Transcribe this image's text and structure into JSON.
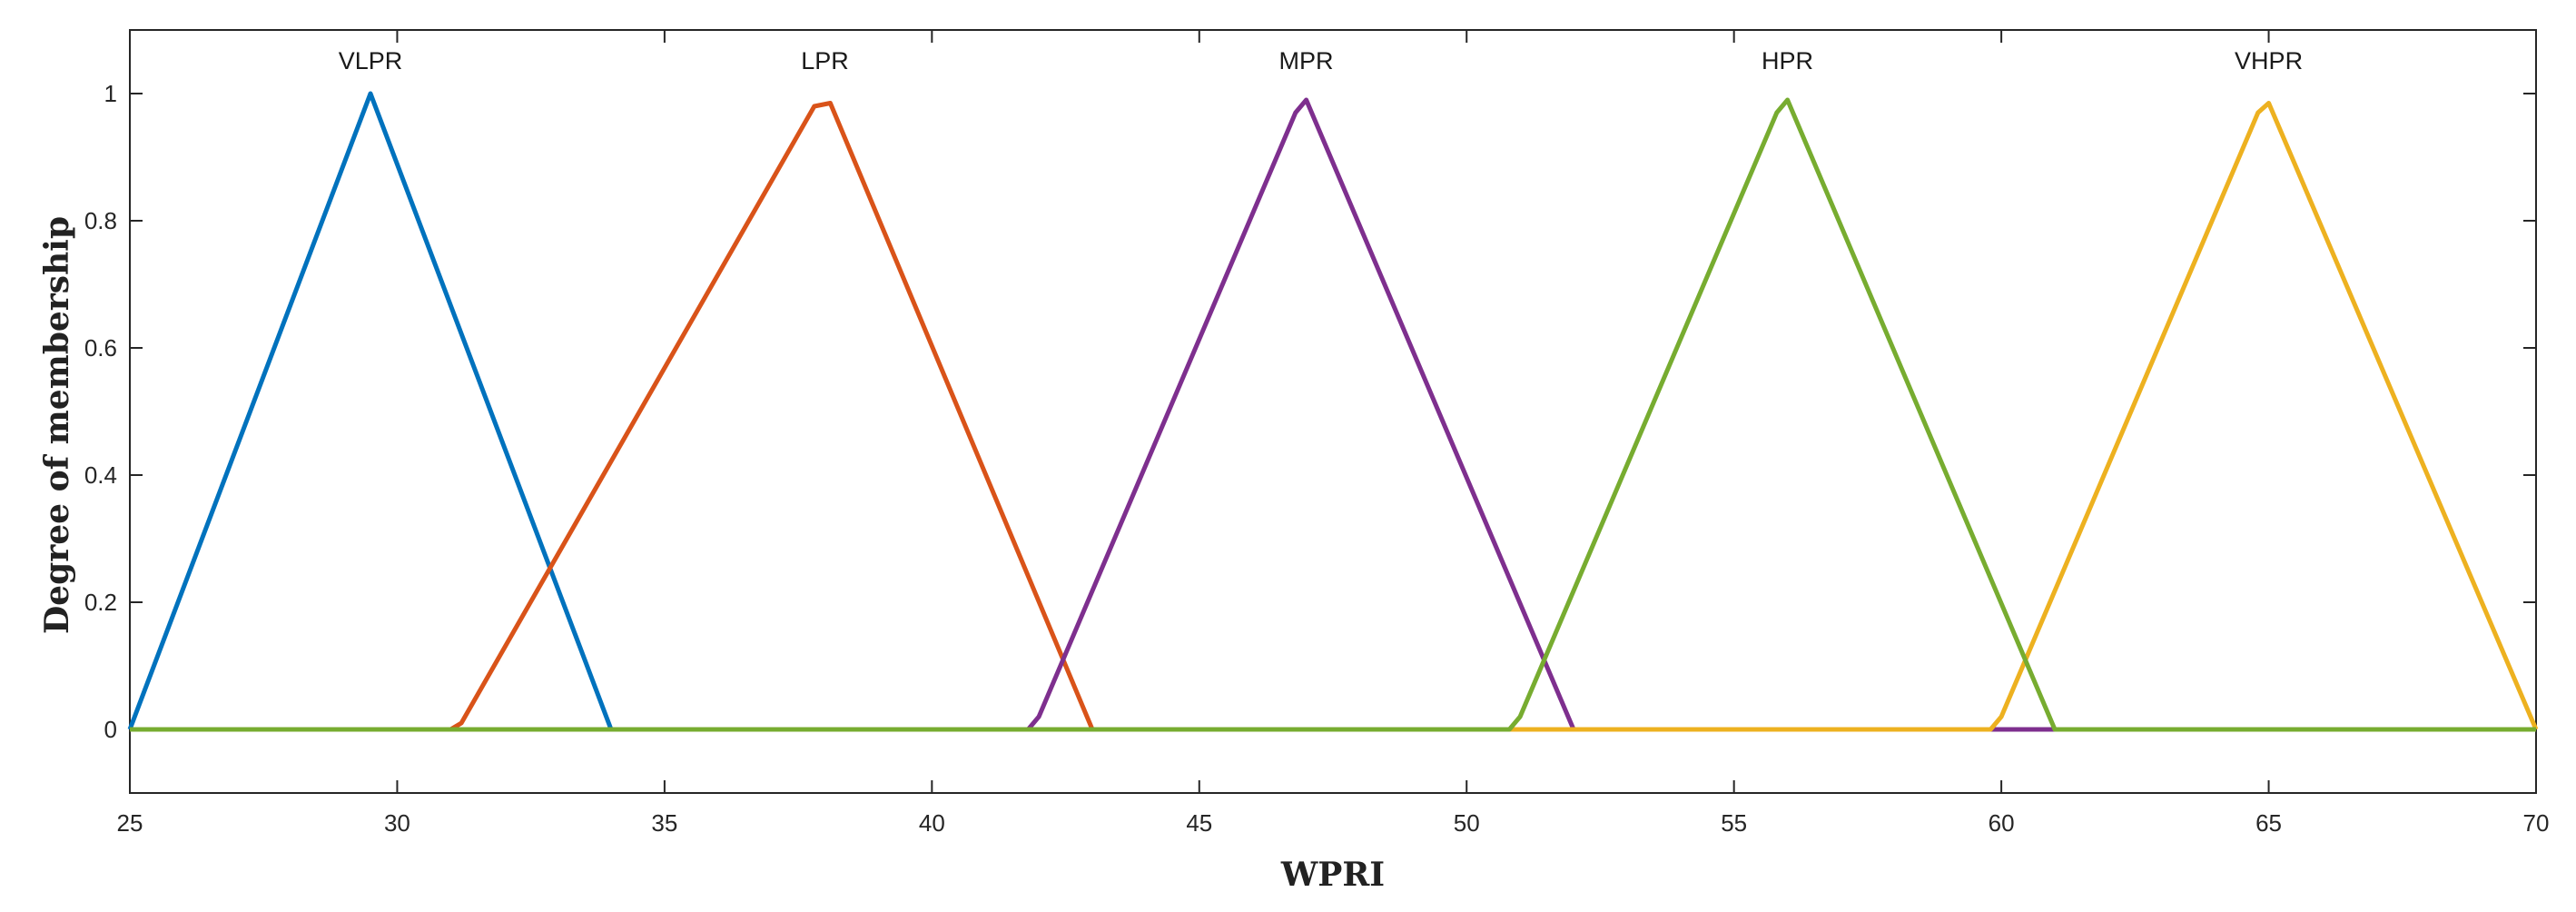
{
  "chart_data": {
    "type": "line",
    "title": "",
    "xlabel": "WPRI",
    "ylabel": "Degree of membership",
    "xlim": [
      25,
      70
    ],
    "ylim": [
      -0.1,
      1.1
    ],
    "xticks": [
      25,
      30,
      35,
      40,
      45,
      50,
      55,
      60,
      65,
      70
    ],
    "xtick_labels": [
      "25",
      "30",
      "35",
      "40",
      "45",
      "50",
      "55",
      "60",
      "65",
      "70"
    ],
    "yticks": [
      0,
      0.2,
      0.4,
      0.6,
      0.8,
      1
    ],
    "ytick_labels": [
      "0",
      "0.2",
      "0.4",
      "0.6",
      "0.8",
      "1"
    ],
    "grid": false,
    "series": [
      {
        "name": "VLPR",
        "color": "#0072BD",
        "label_x": 29.5,
        "label_y": 1.05,
        "points": [
          [
            25,
            0
          ],
          [
            29.5,
            1
          ],
          [
            34,
            0
          ],
          [
            70,
            0
          ]
        ]
      },
      {
        "name": "LPR",
        "color": "#D95319",
        "label_x": 38,
        "label_y": 1.05,
        "points": [
          [
            25,
            0
          ],
          [
            31,
            0
          ],
          [
            31.2,
            0.01
          ],
          [
            37.8,
            0.98
          ],
          [
            38.1,
            0.985
          ],
          [
            43,
            0
          ],
          [
            70,
            0
          ]
        ]
      },
      {
        "name": "MPR",
        "color": "#7E2F8E",
        "label_x": 47,
        "label_y": 1.05,
        "points": [
          [
            25,
            0
          ],
          [
            41.8,
            0
          ],
          [
            42.0,
            0.02
          ],
          [
            46.8,
            0.97
          ],
          [
            47.0,
            0.99
          ],
          [
            52,
            0
          ],
          [
            70,
            0
          ]
        ]
      },
      {
        "name": "VHPR",
        "color": "#EDB120",
        "label_x": 65,
        "label_y": 1.05,
        "points": [
          [
            25,
            0
          ],
          [
            59.8,
            0
          ],
          [
            60.0,
            0.02
          ],
          [
            64.8,
            0.97
          ],
          [
            65.0,
            0.985
          ],
          [
            70,
            0
          ]
        ]
      },
      {
        "name": "HPR",
        "color": "#77AC30",
        "label_x": 56,
        "label_y": 1.05,
        "points": [
          [
            25,
            0
          ],
          [
            50.8,
            0
          ],
          [
            51.0,
            0.02
          ],
          [
            55.8,
            0.97
          ],
          [
            56.0,
            0.99
          ],
          [
            61,
            0
          ],
          [
            70,
            0
          ]
        ]
      }
    ]
  }
}
